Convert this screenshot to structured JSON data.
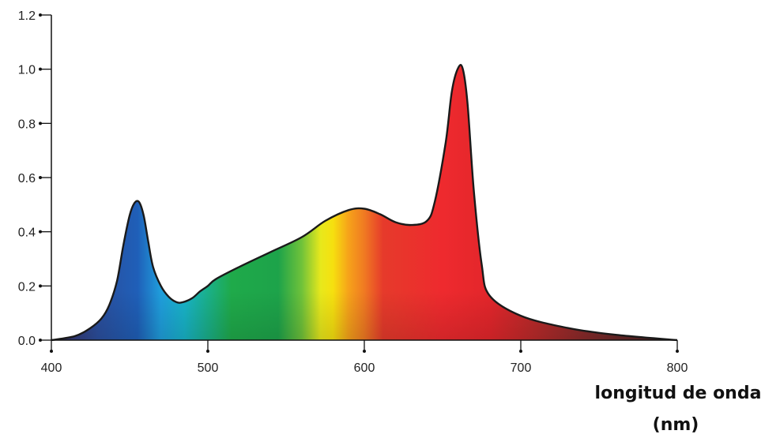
{
  "chart_data": {
    "type": "area",
    "title": "",
    "xlabel_lines": [
      "longitud de onda",
      "(nm)"
    ],
    "ylabel": "",
    "xlim": [
      400,
      800
    ],
    "ylim": [
      0,
      1.2
    ],
    "x_ticks": [
      "400",
      "500",
      "600",
      "700",
      "800"
    ],
    "y_ticks": [
      "0.0",
      "0.2",
      "0.4",
      "0.6",
      "0.8",
      "1.0",
      "1.2"
    ],
    "grid": false,
    "fill": "visible-spectrum gradient",
    "series": [
      {
        "x": [
          400,
          415,
          425,
          432,
          437,
          442,
          446,
          450,
          453,
          456,
          459,
          462,
          465,
          470,
          475,
          480,
          484,
          490,
          495,
          500,
          505,
          520,
          540,
          560,
          575,
          590,
          600,
          610,
          620,
          630,
          640,
          645,
          652,
          656,
          660,
          663,
          666,
          670,
          675,
          680,
          700,
          730,
          760,
          800
        ],
        "y": [
          0.0,
          0.015,
          0.045,
          0.08,
          0.13,
          0.22,
          0.35,
          0.46,
          0.505,
          0.51,
          0.46,
          0.36,
          0.27,
          0.2,
          0.16,
          0.14,
          0.14,
          0.155,
          0.18,
          0.2,
          0.225,
          0.27,
          0.325,
          0.38,
          0.44,
          0.48,
          0.485,
          0.465,
          0.435,
          0.425,
          0.44,
          0.51,
          0.73,
          0.92,
          1.005,
          1.0,
          0.87,
          0.55,
          0.28,
          0.165,
          0.09,
          0.045,
          0.02,
          0.0
        ]
      }
    ],
    "spectrum_stops": [
      {
        "nm": 400,
        "color": "#3a2a5a"
      },
      {
        "nm": 430,
        "color": "#2b4f9e"
      },
      {
        "nm": 455,
        "color": "#1f5fb8"
      },
      {
        "nm": 470,
        "color": "#1f9edc"
      },
      {
        "nm": 485,
        "color": "#18b3c8"
      },
      {
        "nm": 500,
        "color": "#1ab08a"
      },
      {
        "nm": 515,
        "color": "#1faa4a"
      },
      {
        "nm": 545,
        "color": "#1da34a"
      },
      {
        "nm": 560,
        "color": "#6fc23a"
      },
      {
        "nm": 572,
        "color": "#e7e81c"
      },
      {
        "nm": 580,
        "color": "#f6e00f"
      },
      {
        "nm": 590,
        "color": "#f6a21a"
      },
      {
        "nm": 600,
        "color": "#f07a22"
      },
      {
        "nm": 612,
        "color": "#e63a2b"
      },
      {
        "nm": 650,
        "color": "#ee2a2e"
      },
      {
        "nm": 680,
        "color": "#e3262b"
      },
      {
        "nm": 710,
        "color": "#b82a2a"
      },
      {
        "nm": 750,
        "color": "#7a2a2a"
      },
      {
        "nm": 800,
        "color": "#3a2020"
      }
    ],
    "outline_color": "#1a1a1a"
  }
}
